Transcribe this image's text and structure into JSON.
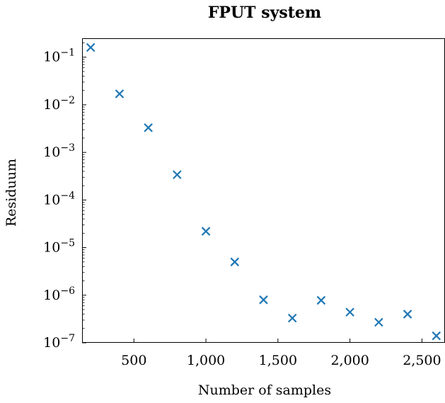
{
  "chart_data": {
    "type": "scatter",
    "title": "FPUT system",
    "xlabel": "Number of samples",
    "ylabel": "Residuum",
    "xscale": "linear",
    "yscale": "log",
    "xlim": [
      140,
      2660
    ],
    "ylim": [
      1e-07,
      0.25
    ],
    "grid": false,
    "x_ticks": [
      500,
      1000,
      1500,
      2000,
      2500
    ],
    "x_tick_labels": [
      "500",
      "1,000",
      "1,500",
      "2,000",
      "2,500"
    ],
    "y_ticks": [
      0.1,
      0.01,
      0.001,
      0.0001,
      1e-05,
      1e-06,
      1e-07
    ],
    "y_tick_labels": [
      {
        "base": "10",
        "exp": "−1"
      },
      {
        "base": "10",
        "exp": "−2"
      },
      {
        "base": "10",
        "exp": "−3"
      },
      {
        "base": "10",
        "exp": "−4"
      },
      {
        "base": "10",
        "exp": "−5"
      },
      {
        "base": "10",
        "exp": "−6"
      },
      {
        "base": "10",
        "exp": "−7"
      }
    ],
    "marker": "x",
    "color": "#1f77b4",
    "series": [
      {
        "x": [
          200,
          400,
          600,
          800,
          1000,
          1200,
          1400,
          1600,
          1800,
          2000,
          2200,
          2400,
          2600
        ],
        "y": [
          0.16,
          0.017,
          0.0033,
          0.00034,
          2.2e-05,
          5e-06,
          8e-07,
          3.3e-07,
          7.8e-07,
          4.4e-07,
          2.7e-07,
          4e-07,
          1.4e-07
        ]
      }
    ]
  }
}
